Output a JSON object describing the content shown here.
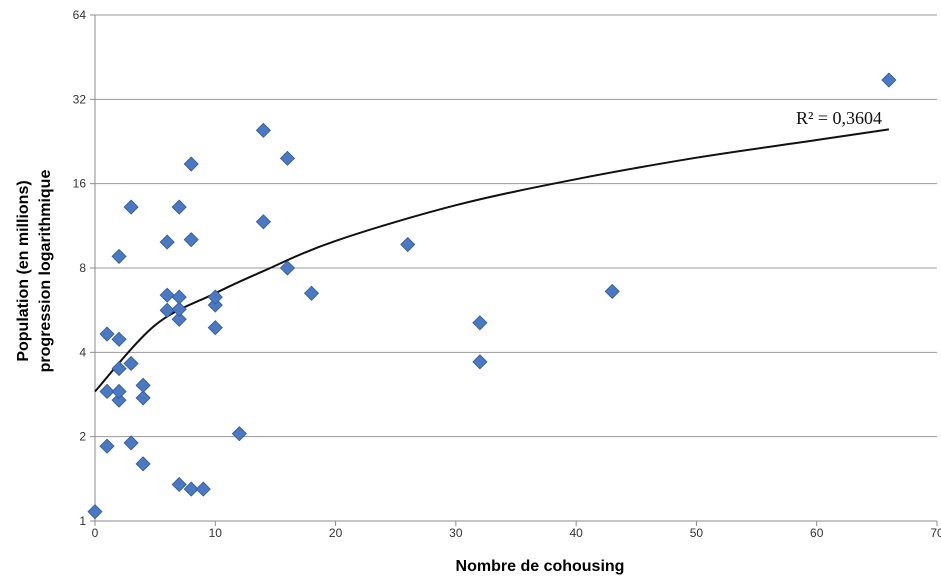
{
  "chart_data": {
    "type": "scatter",
    "title": "",
    "xlabel": "Nombre de cohousing",
    "ylabel_lines": [
      "Population (en millions)",
      "progression logarithmique"
    ],
    "xlim": [
      0,
      70
    ],
    "x_ticks": [
      "0",
      "10",
      "20",
      "30",
      "40",
      "50",
      "60",
      "70"
    ],
    "ylim": [
      1,
      64
    ],
    "y_scale": "log2",
    "y_ticks": [
      "1",
      "2",
      "4",
      "8",
      "16",
      "32",
      "64"
    ],
    "grid": "horizontal",
    "marker_color": "#4a78c2",
    "trendline": {
      "type": "logarithmic",
      "label": "R² = 0,3604",
      "points": [
        [
          0,
          2.9
        ],
        [
          5,
          5.0
        ],
        [
          10,
          6.5
        ],
        [
          14,
          7.8
        ],
        [
          20,
          10.0
        ],
        [
          30,
          13.4
        ],
        [
          40,
          16.6
        ],
        [
          50,
          19.8
        ],
        [
          60,
          22.9
        ],
        [
          66,
          25.0
        ]
      ]
    },
    "points": [
      {
        "x": 0,
        "y": 1.08
      },
      {
        "x": 1,
        "y": 1.85
      },
      {
        "x": 1,
        "y": 2.9
      },
      {
        "x": 1,
        "y": 4.65
      },
      {
        "x": 2,
        "y": 2.7
      },
      {
        "x": 2,
        "y": 2.9
      },
      {
        "x": 2,
        "y": 3.5
      },
      {
        "x": 2,
        "y": 4.45
      },
      {
        "x": 2,
        "y": 8.8
      },
      {
        "x": 3,
        "y": 1.9
      },
      {
        "x": 3,
        "y": 3.65
      },
      {
        "x": 3,
        "y": 13.2
      },
      {
        "x": 4,
        "y": 1.6
      },
      {
        "x": 4,
        "y": 2.75
      },
      {
        "x": 4,
        "y": 3.05
      },
      {
        "x": 6,
        "y": 5.65
      },
      {
        "x": 6,
        "y": 6.4
      },
      {
        "x": 6,
        "y": 9.9
      },
      {
        "x": 7,
        "y": 1.35
      },
      {
        "x": 7,
        "y": 5.25
      },
      {
        "x": 7,
        "y": 5.7
      },
      {
        "x": 7,
        "y": 6.3
      },
      {
        "x": 7,
        "y": 13.2
      },
      {
        "x": 8,
        "y": 1.3
      },
      {
        "x": 8,
        "y": 10.1
      },
      {
        "x": 8,
        "y": 18.8
      },
      {
        "x": 9,
        "y": 1.3
      },
      {
        "x": 10,
        "y": 4.9
      },
      {
        "x": 10,
        "y": 5.9
      },
      {
        "x": 10,
        "y": 6.3
      },
      {
        "x": 12,
        "y": 2.05
      },
      {
        "x": 14,
        "y": 11.7
      },
      {
        "x": 14,
        "y": 24.8
      },
      {
        "x": 16,
        "y": 8.0
      },
      {
        "x": 16,
        "y": 19.7
      },
      {
        "x": 18,
        "y": 6.5
      },
      {
        "x": 26,
        "y": 9.7
      },
      {
        "x": 32,
        "y": 3.7
      },
      {
        "x": 32,
        "y": 5.1
      },
      {
        "x": 43,
        "y": 6.6
      },
      {
        "x": 66,
        "y": 37.5
      }
    ]
  }
}
